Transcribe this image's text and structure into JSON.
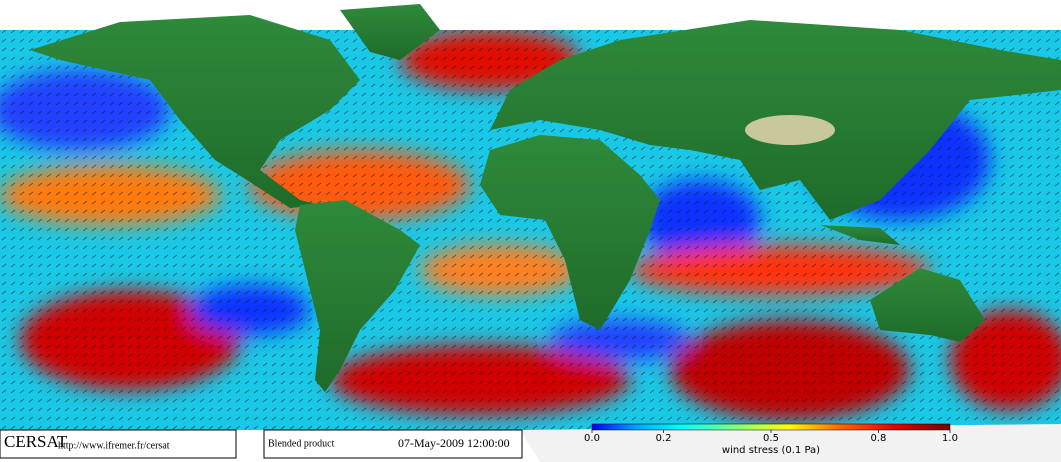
{
  "header": {
    "logo": "CERSAT",
    "url": "http://www.ifremer.fr/cersat",
    "product": "Blended product",
    "date": "07-May-2009 12:00:00"
  },
  "colorbar": {
    "label": "wind stress (0.1 Pa)",
    "lim": [
      0,
      1
    ],
    "ticks": [
      {
        "value": 0,
        "label": "0.0"
      },
      0.2,
      0.5,
      0.8,
      {
        "value": 1,
        "label": "1.0"
      }
    ]
  }
}
